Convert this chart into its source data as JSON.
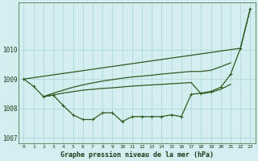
{
  "title": "Graphe pression niveau de la mer (hPa)",
  "bg_color": "#d4eef0",
  "grid_color": "#a8d4d8",
  "line_color": "#2d5a1e",
  "ylim": [
    1006.8,
    1011.6
  ],
  "yticks": [
    1007,
    1008,
    1009,
    1010
  ],
  "xticks": [
    0,
    1,
    2,
    3,
    4,
    5,
    6,
    7,
    8,
    9,
    10,
    11,
    12,
    13,
    14,
    15,
    16,
    17,
    18,
    19,
    20,
    21,
    22,
    23
  ],
  "hours": [
    0,
    1,
    2,
    3,
    4,
    5,
    6,
    7,
    8,
    9,
    10,
    11,
    12,
    13,
    14,
    15,
    16,
    17,
    18,
    19,
    20,
    21,
    22,
    23
  ],
  "instant": [
    1009.0,
    1008.75,
    1008.4,
    1008.45,
    1008.1,
    1007.78,
    1007.62,
    1007.62,
    1007.85,
    1007.85,
    1007.55,
    1007.72,
    1007.72,
    1007.72,
    1007.72,
    1007.78,
    1007.72,
    null,
    null,
    null,
    null,
    null,
    null,
    null
  ],
  "forecast_big": [
    1009.0,
    null,
    null,
    null,
    null,
    null,
    null,
    null,
    null,
    null,
    null,
    null,
    null,
    null,
    null,
    null,
    null,
    null,
    null,
    null,
    null,
    null,
    1010.05,
    1011.4
  ],
  "trend_narrow_lo": [
    null,
    null,
    1008.4,
    1008.46,
    1008.52,
    1008.57,
    1008.62,
    1008.65,
    1008.68,
    1008.7,
    1008.73,
    1008.76,
    1008.78,
    1008.8,
    1008.82,
    1008.84,
    1008.86,
    1008.88,
    1008.5,
    1008.55,
    1008.65,
    1008.82,
    null,
    null
  ],
  "trend_narrow_hi": [
    null,
    null,
    1008.4,
    1008.52,
    1008.62,
    1008.72,
    1008.8,
    1008.87,
    1008.93,
    1008.98,
    1009.03,
    1009.07,
    1009.1,
    1009.13,
    1009.17,
    1009.2,
    1009.23,
    1009.26,
    1009.26,
    1009.3,
    1009.42,
    1009.55,
    null,
    null
  ],
  "markers_late": [
    null,
    null,
    null,
    null,
    null,
    null,
    null,
    null,
    null,
    null,
    null,
    null,
    null,
    null,
    null,
    null,
    1007.72,
    1008.48,
    1008.52,
    1008.58,
    1008.72,
    1009.16,
    1010.05,
    1011.4
  ]
}
